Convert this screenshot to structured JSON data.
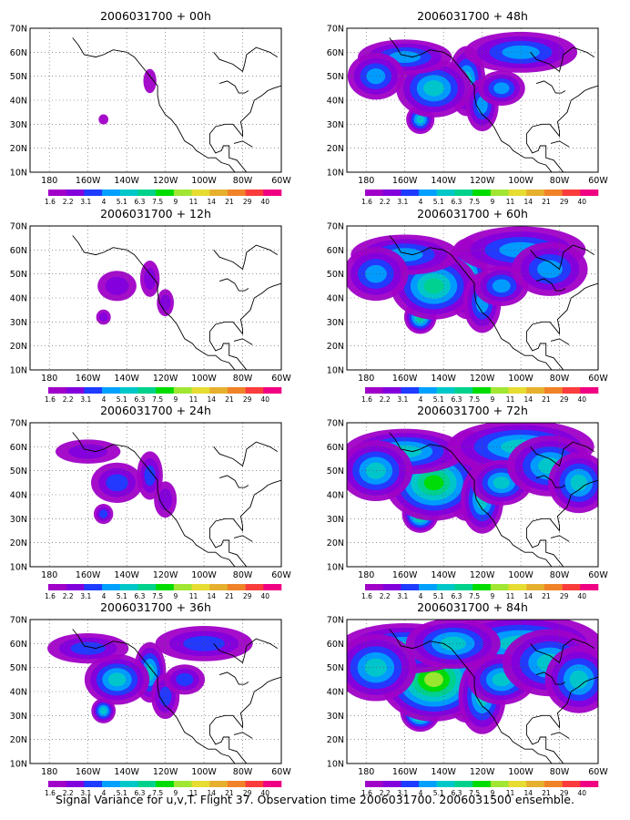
{
  "caption": "Signal Variance for u,v,T. Flight 37. Observation time 2006031700. 2006031500 ensemble.",
  "panels": [
    {
      "title": "2006031700 + 00h",
      "intensity": 0.05
    },
    {
      "title": "2006031700 + 12h",
      "intensity": 0.2
    },
    {
      "title": "2006031700 + 24h",
      "intensity": 0.35
    },
    {
      "title": "2006031700 + 36h",
      "intensity": 0.5
    },
    {
      "title": "2006031700 + 48h",
      "intensity": 0.62
    },
    {
      "title": "2006031700 + 60h",
      "intensity": 0.75
    },
    {
      "title": "2006031700 + 72h",
      "intensity": 0.88
    },
    {
      "title": "2006031700 + 84h",
      "intensity": 1.0
    }
  ],
  "axes": {
    "lat_ticks": [
      "10N",
      "20N",
      "30N",
      "40N",
      "50N",
      "60N",
      "70N"
    ],
    "lon_ticks": [
      "180",
      "160W",
      "140W",
      "120W",
      "100W",
      "80W",
      "60W"
    ],
    "lat_range": [
      10,
      70
    ],
    "lon_range": [
      -190,
      -60
    ]
  },
  "colorbar": {
    "labels": [
      "1.6",
      "2.2",
      "3.1",
      "4",
      "5.1",
      "6.3",
      "7.5",
      "9",
      "11",
      "14",
      "21",
      "29",
      "40"
    ],
    "colors": [
      "#a000c8",
      "#8200dc",
      "#1e3cff",
      "#00a0ff",
      "#00c8c8",
      "#00d28c",
      "#00dc00",
      "#a0e632",
      "#e6dc32",
      "#e6af2d",
      "#f08228",
      "#fa3c3c",
      "#f00082"
    ]
  }
}
